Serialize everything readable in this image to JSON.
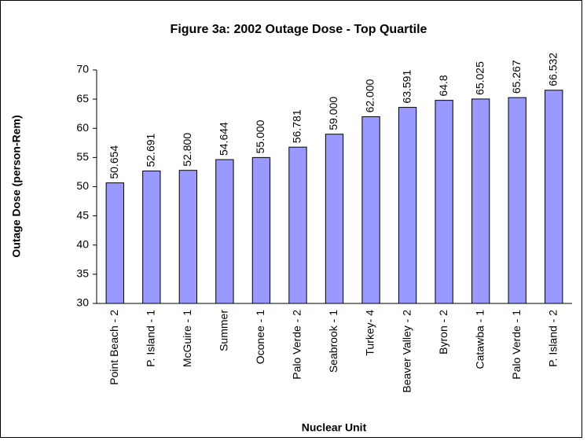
{
  "chart_data": {
    "type": "bar",
    "title": "Figure 3a: 2002 Outage Dose - Top Quartile",
    "x_label": "Nuclear Unit",
    "y_label": "Outage Dose (person-Rem)",
    "categories": [
      "Point Beach - 2",
      "P. Island - 1",
      "McGuire - 1",
      "Summer",
      "Oconee - 1",
      "Palo Verde - 2",
      "Seabrook - 1",
      "Turkey- 4",
      "Beaver Valley - 2",
      "Byron - 2",
      "Catawba - 1",
      "Palo Verde - 1",
      "P. Island - 2"
    ],
    "values": [
      50.654,
      52.691,
      52.8,
      54.644,
      55,
      56.781,
      59,
      62,
      63.591,
      64.8,
      65.025,
      65.267,
      66.532
    ],
    "value_labels": [
      "50.654",
      "52.691",
      "52.800",
      "54.644",
      "55.000",
      "56.781",
      "59.000",
      "62.000",
      "63.591",
      "64.8",
      "65.025",
      "65.267",
      "66.532"
    ],
    "color": "#9999ff",
    "ylim": [
      30,
      70
    ],
    "yticks": [
      30,
      35,
      40,
      45,
      50,
      55,
      60,
      65,
      70
    ],
    "grid": false
  }
}
